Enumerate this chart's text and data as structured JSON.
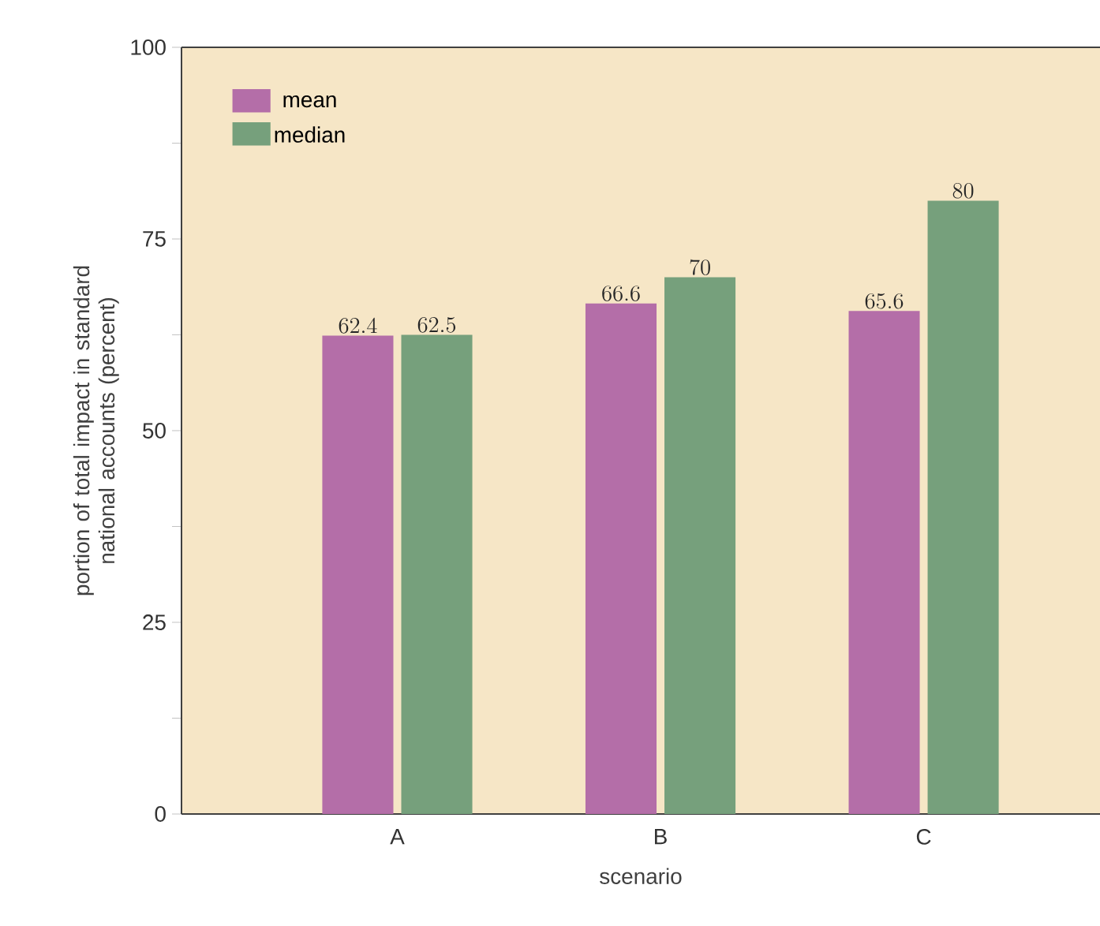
{
  "chart_data": {
    "type": "bar",
    "xlabel": "scenario",
    "ylabel": "portion of total impact in standard national accounts (percent)",
    "categories": [
      "A",
      "B",
      "C"
    ],
    "series": [
      {
        "name": "mean",
        "color": "#b46ea8",
        "values": [
          62.4,
          66.6,
          65.6
        ]
      },
      {
        "name": "median",
        "color": "#76a07c",
        "values": [
          62.5,
          70,
          80
        ]
      }
    ],
    "ylim": [
      0,
      100
    ],
    "yticks": [
      0,
      {
        "value": 12.5,
        "label": null
      },
      25,
      {
        "value": 37.5,
        "label": null
      },
      50,
      {
        "value": 62.5,
        "label": null
      },
      75,
      {
        "value": 87.5,
        "label": null
      },
      100
    ],
    "data_labels": true,
    "legend": "top left",
    "grid": false
  }
}
